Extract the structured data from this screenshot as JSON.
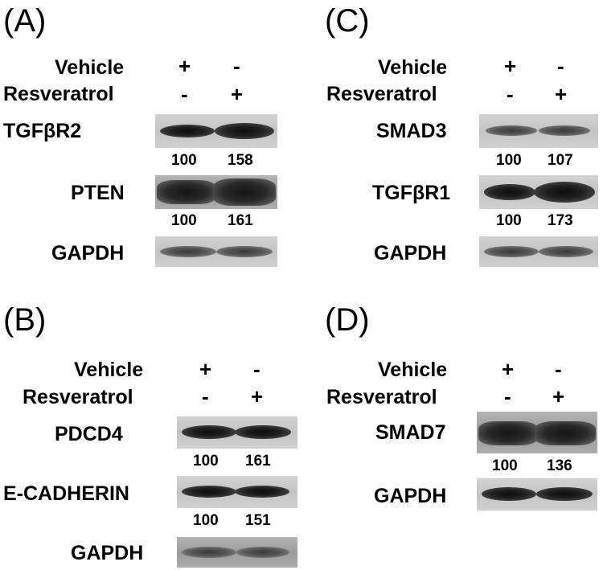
{
  "colors": {
    "background": "#ffffff",
    "band": "#111111",
    "membrane": "#c8c8c8"
  },
  "panels": {
    "A": {
      "letter": "(A)",
      "vehicle_label": "Vehicle",
      "resveratrol_label": "Resveratrol",
      "vehicle_signs": [
        "+",
        "-"
      ],
      "resveratrol_signs": [
        "-",
        "+"
      ],
      "blots": [
        {
          "name": "TGFβR2",
          "values": [
            "100",
            "158"
          ]
        },
        {
          "name": "PTEN",
          "values": [
            "100",
            "161"
          ]
        },
        {
          "name": "GAPDH"
        }
      ]
    },
    "B": {
      "letter": "(B)",
      "vehicle_label": "Vehicle",
      "resveratrol_label": "Resveratrol",
      "vehicle_signs": [
        "+",
        "-"
      ],
      "resveratrol_signs": [
        "-",
        "+"
      ],
      "blots": [
        {
          "name": "PDCD4",
          "values": [
            "100",
            "161"
          ]
        },
        {
          "name": "E-CADHERIN",
          "values": [
            "100",
            "151"
          ]
        },
        {
          "name": "GAPDH"
        }
      ]
    },
    "C": {
      "letter": "(C)",
      "vehicle_label": "Vehicle",
      "resveratrol_label": "Resveratrol",
      "vehicle_signs": [
        "+",
        "-"
      ],
      "resveratrol_signs": [
        "-",
        "+"
      ],
      "blots": [
        {
          "name": "SMAD3",
          "values": [
            "100",
            "107"
          ]
        },
        {
          "name": "TGFβR1",
          "values": [
            "100",
            "173"
          ]
        },
        {
          "name": "GAPDH"
        }
      ]
    },
    "D": {
      "letter": "(D)",
      "vehicle_label": "Vehicle",
      "resveratrol_label": "Resveratrol",
      "vehicle_signs": [
        "+",
        "-"
      ],
      "resveratrol_signs": [
        "-",
        "+"
      ],
      "blots": [
        {
          "name": "SMAD7",
          "values": [
            "100",
            "136"
          ]
        },
        {
          "name": "GAPDH"
        }
      ]
    }
  }
}
